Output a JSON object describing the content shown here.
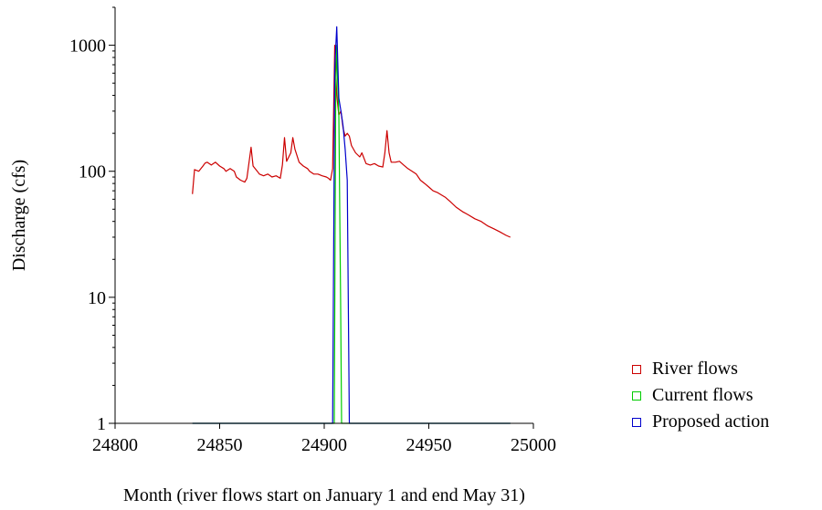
{
  "chart_data": {
    "type": "line",
    "title": "",
    "xlabel": "Month (river flows start on January 1 and end May 31)",
    "ylabel": "Discharge (cfs)",
    "xlim": [
      24800,
      25000
    ],
    "ylim": [
      1,
      2000
    ],
    "yscale": "log",
    "x_ticks": [
      24800,
      24850,
      24900,
      24950,
      25000
    ],
    "y_ticks": [
      1,
      10,
      100,
      1000
    ],
    "x_tick_labels": [
      "24800",
      "24850",
      "24900",
      "24950",
      "25000"
    ],
    "y_tick_labels": [
      "1",
      "10",
      "100",
      "1000"
    ],
    "grid": false,
    "legend_position": "right",
    "series": [
      {
        "name": "River flows",
        "color": "#cc0000",
        "x": [
          24837,
          24838,
          24840,
          24842,
          24843,
          24844,
          24846,
          24848,
          24850,
          24852,
          24853,
          24855,
          24857,
          24858,
          24860,
          24862,
          24863,
          24865,
          24866,
          24868,
          24869,
          24871,
          24873,
          24875,
          24877,
          24879,
          24880,
          24881,
          24882,
          24884,
          24885,
          24886,
          24888,
          24890,
          24892,
          24893,
          24895,
          24897,
          24899,
          24901,
          24902,
          24903,
          24904,
          24905,
          24906,
          24907,
          24908,
          24909,
          24910,
          24911,
          24912,
          24913,
          24915,
          24917,
          24918,
          24920,
          24922,
          24924,
          24926,
          24928,
          24929,
          24930,
          24931,
          24932,
          24934,
          24936,
          24938,
          24940,
          24942,
          24944,
          24946,
          24948,
          24950,
          24952,
          24954,
          24956,
          24958,
          24960,
          24963,
          24966,
          24969,
          24972,
          24975,
          24978,
          24981,
          24984,
          24987,
          24989
        ],
        "y": [
          66,
          103,
          100,
          110,
          116,
          118,
          112,
          118,
          110,
          105,
          100,
          105,
          100,
          90,
          85,
          82,
          88,
          155,
          110,
          100,
          95,
          92,
          95,
          90,
          92,
          88,
          112,
          185,
          120,
          140,
          185,
          150,
          118,
          110,
          105,
          100,
          95,
          95,
          92,
          90,
          88,
          85,
          105,
          1000,
          400,
          280,
          300,
          220,
          190,
          200,
          190,
          160,
          140,
          130,
          140,
          115,
          112,
          115,
          110,
          108,
          140,
          210,
          140,
          118,
          118,
          120,
          112,
          105,
          100,
          95,
          85,
          80,
          75,
          70,
          68,
          65,
          62,
          58,
          52,
          48,
          45,
          42,
          40,
          37,
          35,
          33,
          31,
          30
        ]
      },
      {
        "name": "Current flows",
        "color": "#00cc00",
        "x": [
          24837,
          24904.8,
          24905.5,
          24906,
          24906.5,
          24907,
          24907.8,
          24908.3,
          24989
        ],
        "y": [
          1,
          1,
          450,
          1000,
          450,
          280,
          10,
          1,
          1
        ]
      },
      {
        "name": "Proposed action",
        "color": "#0000cc",
        "x": [
          24837,
          24904,
          24905,
          24906,
          24907,
          24908,
          24909,
          24910,
          24911,
          24912,
          24989
        ],
        "y": [
          1,
          1,
          650,
          1400,
          380,
          300,
          230,
          150,
          85,
          1,
          1
        ]
      }
    ]
  }
}
